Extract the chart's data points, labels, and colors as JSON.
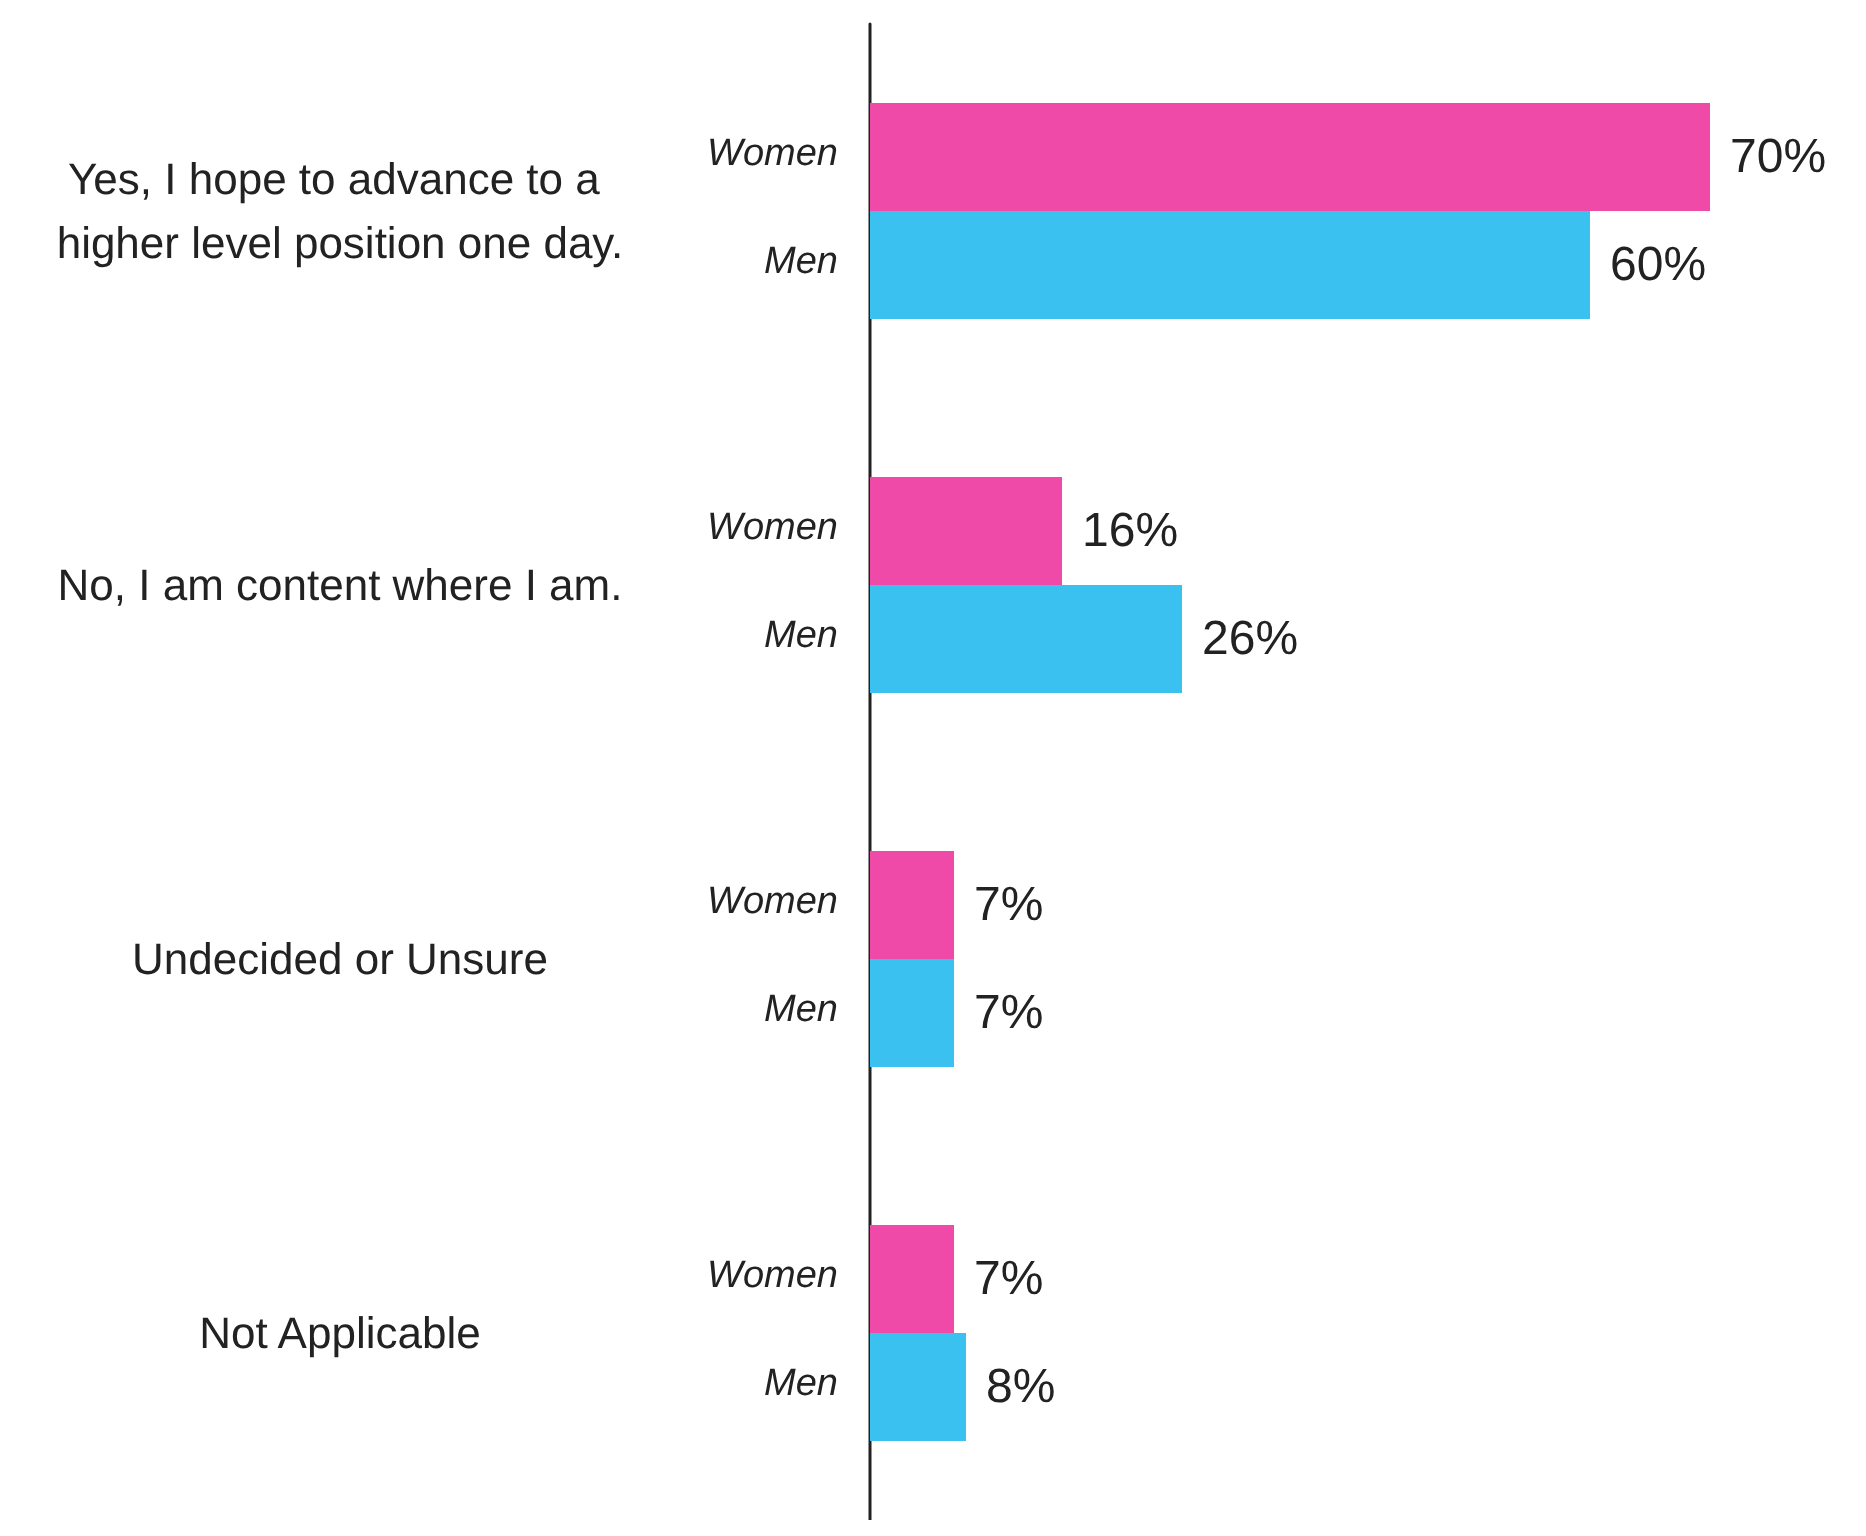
{
  "chart_data": {
    "type": "bar",
    "orientation": "horizontal",
    "categories": [
      "Yes, I hope to advance to a higher level position one day.",
      "No, I am content where I am.",
      "Undecided or Unsure",
      "Not Applicable"
    ],
    "series": [
      {
        "name": "Women",
        "color": "#f04aa8",
        "values": [
          70,
          16,
          7,
          7
        ],
        "value_labels": [
          "70%",
          "16%",
          "7%",
          "7%"
        ]
      },
      {
        "name": "Men",
        "color": "#3bc1f0",
        "values": [
          60,
          26,
          7,
          8
        ],
        "value_labels": [
          "60%",
          "26%",
          "7%",
          "8%"
        ]
      }
    ],
    "legend": false,
    "grid": false
  }
}
